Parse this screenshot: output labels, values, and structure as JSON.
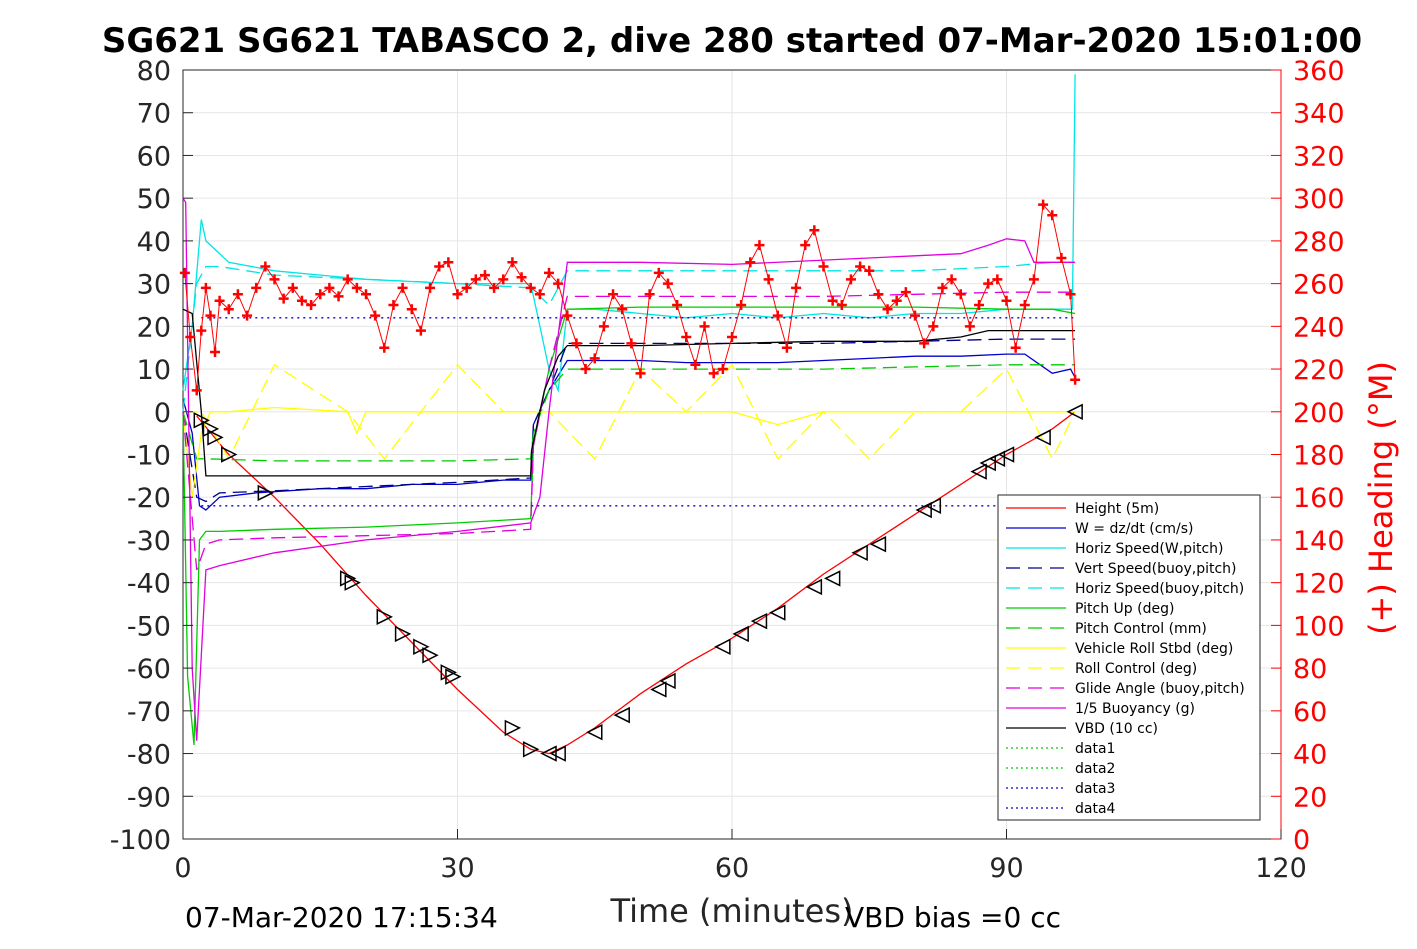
{
  "chart_data": {
    "type": "line",
    "title": "SG621 SG621 TABASCO 2, dive 280 started 07-Mar-2020 15:01:00",
    "xlabel": "Time (minutes)",
    "ylabel": "",
    "y2label": "(+) Heading (°M)",
    "xlim": [
      0,
      120
    ],
    "ylim": [
      -100,
      80
    ],
    "y2lim": [
      0,
      360
    ],
    "xticks": [
      "0",
      "30",
      "60",
      "90",
      "120"
    ],
    "yticks": [
      "80",
      "70",
      "60",
      "50",
      "40",
      "30",
      "20",
      "10",
      "0",
      "-10",
      "-20",
      "-30",
      "-40",
      "-50",
      "-60",
      "-70",
      "-80",
      "-90",
      "-100"
    ],
    "y2ticks": [
      "360",
      "340",
      "320",
      "300",
      "280",
      "260",
      "240",
      "220",
      "200",
      "180",
      "160",
      "140",
      "120",
      "100",
      "80",
      "60",
      "40",
      "20",
      "0"
    ],
    "grid": true,
    "legend_position": "lower-right",
    "footer_left": "07-Mar-2020 17:15:34",
    "footer_right": "VBD bias =0 cc",
    "colors": {
      "height": "#ff0000",
      "w": "#0000cd",
      "horiz": "#00e5e5",
      "pitch": "#00cc00",
      "roll": "#ffff00",
      "glide": "#e000e0",
      "vbd": "#000000",
      "heading": "#ff0000"
    },
    "series": [
      {
        "name": "Height (5m)",
        "color": "#ff0000",
        "style": "solid",
        "x": [
          1.5,
          5,
          10,
          15,
          20,
          25,
          30,
          35,
          38,
          40,
          42,
          45,
          50,
          55,
          60,
          65,
          70,
          75,
          80,
          85,
          90,
          95,
          97.5
        ],
        "y": [
          -1,
          -10,
          -20,
          -31,
          -43,
          -54,
          -65,
          -75,
          -79,
          -80,
          -78,
          -74,
          -66,
          -59,
          -53,
          -46,
          -38,
          -31,
          -24,
          -17,
          -10,
          -4,
          0
        ]
      },
      {
        "name": "W = dz/dt (cm/s)",
        "color": "#0000cd",
        "style": "solid",
        "x": [
          0,
          1,
          1.8,
          2.5,
          4,
          8,
          15,
          20,
          25,
          30,
          35,
          38,
          38.3,
          40,
          42,
          43,
          50,
          55,
          60,
          65,
          70,
          75,
          80,
          85,
          90,
          92,
          95,
          97,
          97.5
        ],
        "y": [
          3,
          -5,
          -22,
          -23,
          -20,
          -19,
          -18,
          -18,
          -17,
          -17,
          -16,
          -16,
          -3,
          5,
          12,
          12,
          12,
          11.5,
          11.5,
          11.5,
          12,
          12.5,
          13,
          13,
          13.5,
          13.5,
          9,
          10,
          8
        ]
      },
      {
        "name": "Horiz Speed(W,pitch)",
        "color": "#00e5e5",
        "style": "solid",
        "x": [
          0,
          1,
          2,
          2.5,
          3.5,
          5,
          10,
          15,
          20,
          25,
          30,
          35,
          38,
          39,
          40,
          41,
          42,
          45,
          50,
          55,
          60,
          65,
          70,
          75,
          80,
          85,
          90,
          95,
          97.2,
          97.5
        ],
        "y": [
          5,
          20,
          45,
          40,
          38,
          35,
          33,
          32,
          31,
          30.5,
          30,
          30,
          30,
          20,
          10,
          5,
          24,
          24,
          23,
          22,
          23,
          22,
          23,
          22,
          23,
          23,
          24,
          24,
          24,
          79
        ]
      },
      {
        "name": "Vert Speed(buoy,pitch)",
        "color": "#00008b",
        "style": "dashed",
        "x": [
          0,
          1.5,
          2.5,
          4,
          10,
          20,
          30,
          38,
          38.3,
          40,
          42,
          50,
          60,
          70,
          80,
          90,
          95,
          97.5
        ],
        "y": [
          0,
          -20,
          -21,
          -19,
          -18.5,
          -17.5,
          -16.5,
          -15.5,
          -3,
          5,
          16,
          16,
          16,
          16,
          16.5,
          17,
          17,
          17
        ]
      },
      {
        "name": "Horiz Speed(buoy,pitch)",
        "color": "#00e5e5",
        "style": "dashed",
        "x": [
          0,
          1.5,
          2.5,
          4,
          10,
          20,
          30,
          38,
          40,
          42,
          50,
          60,
          70,
          80,
          90,
          95,
          97.5
        ],
        "y": [
          0,
          30,
          34,
          34,
          32,
          31,
          30,
          29,
          25,
          33,
          33,
          33,
          33,
          33,
          34,
          35,
          35
        ]
      },
      {
        "name": "Pitch Up (deg)",
        "color": "#00cc00",
        "style": "solid",
        "x": [
          0,
          0.5,
          1.2,
          1.8,
          2.5,
          4,
          10,
          20,
          30,
          38,
          38.3,
          40,
          42,
          50,
          60,
          70,
          80,
          90,
          95,
          97.5
        ],
        "y": [
          0,
          -62,
          -78,
          -30,
          -28,
          -28,
          -27.5,
          -27,
          -26,
          -25,
          -8,
          10,
          24,
          24.5,
          24.5,
          24.5,
          24.5,
          24,
          24,
          23
        ]
      },
      {
        "name": "Pitch Control (mm)",
        "color": "#00cc00",
        "style": "dashed",
        "x": [
          0,
          1.5,
          2.5,
          10,
          20,
          30,
          38,
          38.3,
          40,
          42,
          50,
          60,
          70,
          80,
          90,
          95,
          97.5
        ],
        "y": [
          0,
          -11,
          -11,
          -11.5,
          -11.5,
          -11.5,
          -11,
          -5,
          5,
          10,
          10,
          10,
          10,
          10.5,
          11,
          11,
          11
        ]
      },
      {
        "name": "Vehicle Roll Stbd (deg)",
        "color": "#ffff00",
        "style": "solid",
        "x": [
          0,
          1,
          2,
          3,
          5,
          10,
          18,
          19,
          20,
          25,
          30,
          35,
          40,
          45,
          50,
          55,
          60,
          65,
          70,
          75,
          80,
          85,
          90,
          95,
          97.5
        ],
        "y": [
          0,
          -20,
          -5,
          0,
          0,
          1,
          0,
          -5,
          0,
          0,
          0,
          0,
          0,
          0,
          0,
          0,
          0,
          -3,
          0,
          0,
          0,
          0,
          0,
          0,
          0
        ]
      },
      {
        "name": "Roll Control (deg)",
        "color": "#ffff00",
        "style": "dashed",
        "x": [
          0,
          2,
          5,
          10,
          18,
          22,
          26,
          30,
          35,
          40,
          45,
          50,
          55,
          60,
          65,
          70,
          75,
          80,
          85,
          90,
          95,
          97.5
        ],
        "y": [
          0,
          0,
          -11,
          11,
          0,
          -11,
          0,
          11,
          0,
          0,
          -11,
          10,
          0,
          11,
          -11,
          0,
          -11,
          0,
          0,
          10,
          -11,
          0
        ]
      },
      {
        "name": "Glide Angle (buoy,pitch)",
        "color": "#e000e0",
        "style": "dashed",
        "x": [
          0,
          1.5,
          2.5,
          4,
          10,
          20,
          30,
          38,
          38.3,
          40,
          42,
          50,
          60,
          70,
          80,
          90,
          95,
          97.5
        ],
        "y": [
          0,
          -37,
          -31,
          -30,
          -29.5,
          -29,
          -28.5,
          -27.5,
          -8,
          10,
          27,
          27,
          27,
          27,
          27.5,
          28,
          28,
          28
        ]
      },
      {
        "name": "1/5 Buoyancy (g)",
        "color": "#e000e0",
        "style": "solid",
        "x": [
          0,
          0.3,
          1,
          1.5,
          2.5,
          4,
          10,
          20,
          30,
          38,
          39,
          40,
          41,
          42,
          50,
          60,
          70,
          80,
          85,
          88,
          90,
          92,
          93,
          97.5
        ],
        "y": [
          50,
          49,
          -60,
          -77,
          -37,
          -36,
          -33,
          -30,
          -28,
          -26,
          -20,
          0,
          18,
          35,
          35,
          34.5,
          35.5,
          36.5,
          37,
          39,
          40.5,
          40,
          35,
          35
        ]
      },
      {
        "name": "VBD (10 cc)",
        "color": "#000000",
        "style": "solid",
        "x": [
          0,
          1,
          2,
          2.5,
          10,
          20,
          30,
          38,
          38.1,
          39.5,
          41,
          42,
          50,
          60,
          70,
          80,
          85,
          88,
          90,
          95,
          97.5
        ],
        "y": [
          24,
          23,
          0,
          -15,
          -15,
          -15,
          -15,
          -15,
          -9,
          5,
          13,
          15.5,
          15.5,
          16,
          16.5,
          16.5,
          17.5,
          19,
          19,
          19,
          19
        ]
      },
      {
        "name": "data1",
        "color": "#00cc00",
        "style": "dotted",
        "x": [],
        "y": []
      },
      {
        "name": "data2",
        "color": "#00cc00",
        "style": "dotted",
        "x": [],
        "y": []
      },
      {
        "name": "data3",
        "color": "#0000cd",
        "style": "dotted",
        "x": [
          2,
          97.5
        ],
        "y": [
          -22,
          -22
        ]
      },
      {
        "name": "data4",
        "color": "#0000cd",
        "style": "dotted",
        "x": [
          2,
          97.5
        ],
        "y": [
          22,
          22
        ]
      }
    ],
    "heading_series": {
      "axis": "right",
      "marker": "+",
      "color": "#ff0000",
      "x": [
        0.2,
        0.8,
        1.5,
        2,
        2.5,
        3,
        3.5,
        4,
        5,
        6,
        7,
        8,
        9,
        10,
        11,
        12,
        13,
        14,
        15,
        16,
        17,
        18,
        19,
        20,
        21,
        22,
        23,
        24,
        25,
        26,
        27,
        28,
        29,
        30,
        31,
        32,
        33,
        34,
        35,
        36,
        37,
        38,
        39,
        40,
        41,
        42,
        43,
        44,
        45,
        46,
        47,
        48,
        49,
        50,
        51,
        52,
        53,
        54,
        55,
        56,
        57,
        58,
        59,
        60,
        61,
        62,
        63,
        64,
        65,
        66,
        67,
        68,
        69,
        70,
        71,
        72,
        73,
        74,
        75,
        76,
        77,
        78,
        79,
        80,
        81,
        82,
        83,
        84,
        85,
        86,
        87,
        88,
        89,
        90,
        91,
        92,
        93,
        94,
        95,
        96,
        97,
        97.5
      ],
      "y": [
        265,
        235,
        210,
        238,
        258,
        245,
        228,
        252,
        248,
        255,
        245,
        258,
        268,
        262,
        253,
        258,
        252,
        250,
        255,
        258,
        254,
        262,
        258,
        255,
        245,
        230,
        250,
        258,
        248,
        238,
        258,
        268,
        270,
        255,
        258,
        262,
        264,
        258,
        262,
        270,
        263,
        258,
        255,
        265,
        260,
        245,
        232,
        220,
        225,
        240,
        255,
        248,
        232,
        218,
        255,
        265,
        260,
        250,
        235,
        222,
        240,
        218,
        220,
        235,
        250,
        270,
        278,
        262,
        245,
        230,
        258,
        278,
        285,
        268,
        252,
        250,
        262,
        268,
        266,
        255,
        248,
        252,
        256,
        245,
        232,
        240,
        258,
        262,
        255,
        240,
        250,
        260,
        262,
        252,
        230,
        250,
        262,
        297,
        292,
        272,
        255,
        215
      ]
    },
    "marker_series": {
      "name": "triangle markers",
      "color": "#000000",
      "marker": "triangle",
      "x": [
        2,
        3,
        3.5,
        5,
        9,
        18,
        18.5,
        22,
        24,
        26,
        27,
        29,
        29.5,
        36,
        38,
        40,
        41,
        45,
        48,
        52,
        53,
        59,
        61,
        63,
        65,
        69,
        71,
        74,
        76,
        81,
        82,
        87,
        88,
        89,
        90,
        94,
        97.5
      ],
      "y": [
        -2,
        -4,
        -6,
        -10,
        -19,
        -39,
        -40,
        -48,
        -52,
        -55,
        -57,
        -61,
        -62,
        -74,
        -79,
        -80,
        -80,
        -75,
        -71,
        -65,
        -63,
        -55,
        -52,
        -49,
        -47,
        -41,
        -39,
        -33,
        -31,
        -23,
        -22,
        -14,
        -12,
        -11,
        -10,
        -6,
        0
      ]
    }
  }
}
